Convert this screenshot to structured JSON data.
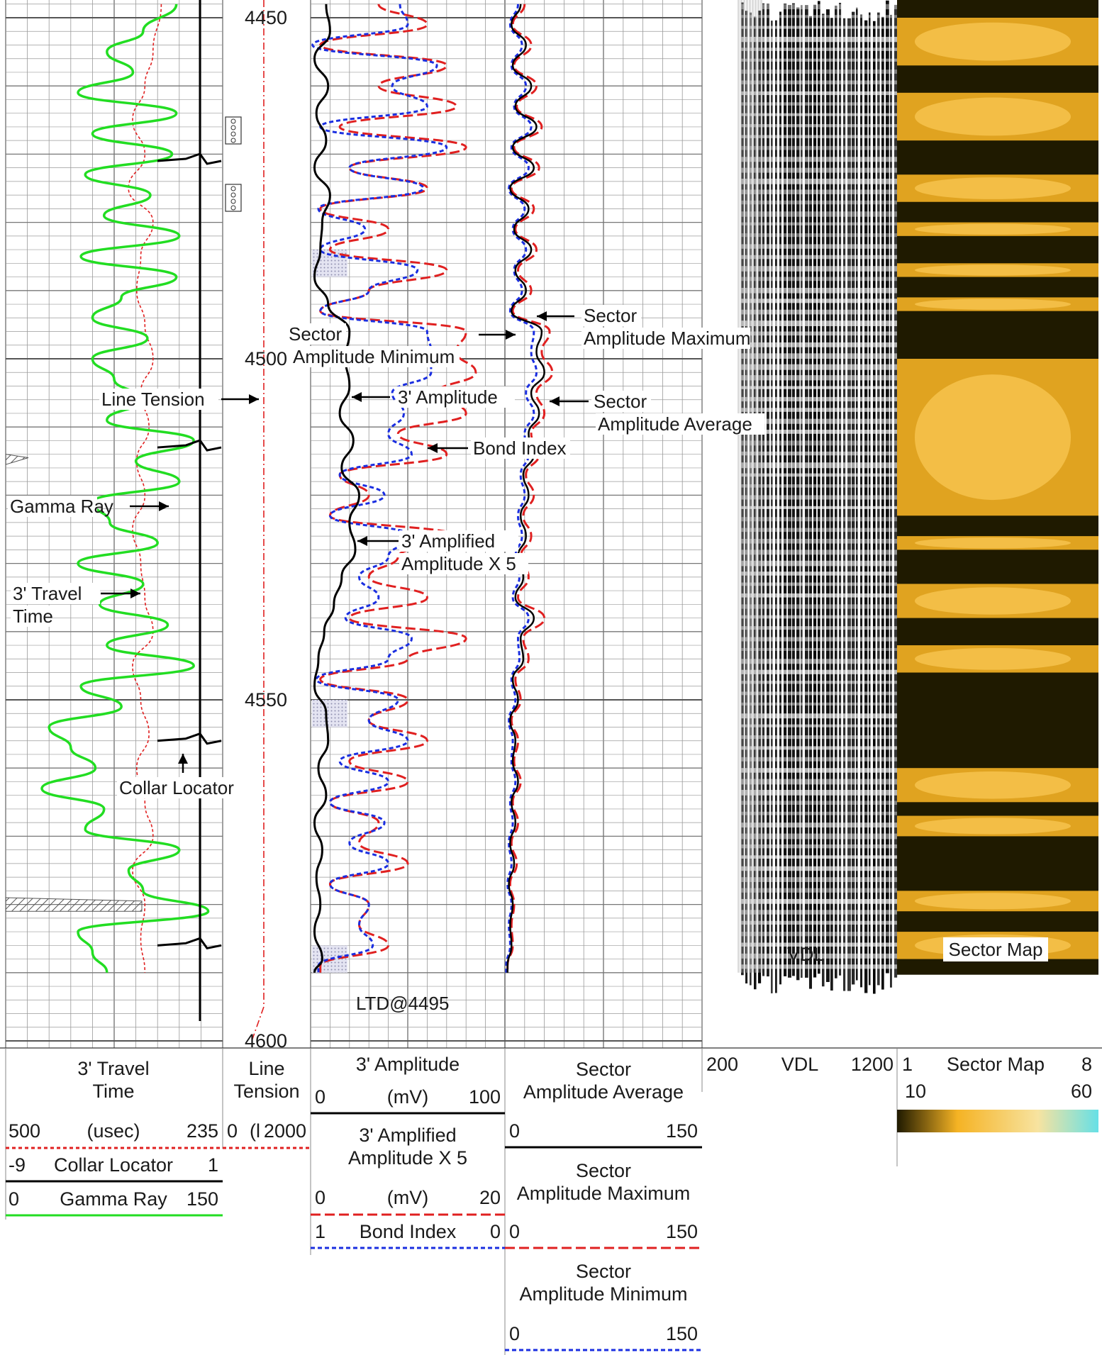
{
  "chart_data": {
    "type": "line",
    "title": "",
    "depth_axis": {
      "ticks": [
        "4450",
        "4500",
        "4550",
        "4600"
      ],
      "min": 4448,
      "max": 4600
    },
    "annotations": {
      "line_tension": "Line Tension",
      "gamma_ray": "Gamma Ray",
      "travel_time_1": "3' Travel",
      "travel_time_2": "Time",
      "collar_locator": "Collar Locator",
      "sector_min_1": "Sector",
      "sector_min_2": "Amplitude Minimum",
      "amplitude_3ft": "3' Amplitude",
      "bond_index": "Bond Index",
      "amplified_1": "3' Amplified",
      "amplified_2": "Amplitude X 5",
      "sector_max_1": "Sector",
      "sector_max_2": "Amplitude Maximum",
      "sector_avg_1": "Sector",
      "sector_avg_2": "Amplitude Average",
      "ltd": "LTD@4495",
      "vdl": "VDL",
      "sector_map": "Sector Map"
    },
    "header": {
      "travel_time": {
        "name_1": "3' Travel",
        "name_2": "Time",
        "min": "500",
        "unit": "(usec)",
        "max": "235",
        "color": "#e02020"
      },
      "collar_locator": {
        "name": "Collar Locator",
        "min": "-9",
        "max": "1",
        "color": "#000000"
      },
      "gamma_ray": {
        "name": "Gamma Ray",
        "min": "0",
        "max": "150",
        "color": "#22dd22"
      },
      "line_tension": {
        "name_1": "Line",
        "name_2": "Tension",
        "min": "0",
        "mid": "(l",
        "max": "2000",
        "color": "#e02020"
      },
      "amplitude_3ft": {
        "name": "3' Amplitude",
        "min": "0",
        "unit": "(mV)",
        "max": "100",
        "color": "#000000"
      },
      "amplified": {
        "name_1": "3' Amplified",
        "name_2": "Amplitude X 5",
        "min": "0",
        "unit": "(mV)",
        "max": "20",
        "color": "#e02020"
      },
      "bond_index": {
        "name": "Bond Index",
        "min": "1",
        "max": "0",
        "color": "#1a2ee0"
      },
      "sector_avg": {
        "name_1": "Sector",
        "name_2": "Amplitude Average",
        "min": "0",
        "max": "150",
        "color": "#000000"
      },
      "sector_max": {
        "name_1": "Sector",
        "name_2": "Amplitude Maximum",
        "min": "0",
        "max": "150",
        "color": "#e02020"
      },
      "sector_min": {
        "name_1": "Sector",
        "name_2": "Amplitude Minimum",
        "min": "0",
        "max": "150",
        "color": "#1a2ee0"
      },
      "vdl": {
        "name": "VDL",
        "min": "200",
        "max": "1200"
      },
      "sector_map": {
        "name": "Sector Map",
        "min": "1",
        "max": "8",
        "min2": "10",
        "max2": "60"
      }
    },
    "colors": {
      "gamma": "#22dd22",
      "red": "#e02020",
      "blue": "#1a2ee0",
      "black": "#000000",
      "grid": "#9a9a9a",
      "map_dark": "#1f1a00",
      "map_light": "#f5b324",
      "map_high": "#66e0e6"
    },
    "series": [
      {
        "name": "Gamma Ray",
        "unit_range": [
          0,
          150
        ],
        "depths": [
          4448,
          4452,
          4455,
          4458,
          4461,
          4464,
          4467,
          4470,
          4473,
          4476,
          4479,
          4482,
          4485,
          4488,
          4491,
          4494,
          4497,
          4500,
          4503,
          4506,
          4509,
          4512,
          4515,
          4518,
          4521,
          4524,
          4527,
          4530,
          4533,
          4536,
          4539,
          4542,
          4545,
          4548,
          4551,
          4554,
          4557,
          4560,
          4563,
          4566,
          4569,
          4572,
          4575,
          4578,
          4581,
          4584,
          4587,
          4590
        ],
        "values": [
          118,
          95,
          70,
          88,
          50,
          118,
          60,
          115,
          55,
          100,
          68,
          120,
          52,
          118,
          80,
          60,
          98,
          60,
          75,
          95,
          70,
          130,
          90,
          120,
          60,
          72,
          105,
          50,
          95,
          65,
          112,
          70,
          130,
          52,
          80,
          30,
          45,
          62,
          25,
          68,
          55,
          120,
          85,
          95,
          140,
          50,
          60,
          70
        ]
      },
      {
        "name": "3' Travel Time",
        "unit_range": [
          500,
          235
        ],
        "depths": [
          4448,
          4455,
          4460,
          4465,
          4470,
          4475,
          4480,
          4485,
          4490,
          4495,
          4500,
          4505,
          4510,
          4515,
          4520,
          4525,
          4530,
          4535,
          4540,
          4545,
          4550,
          4555,
          4560,
          4565,
          4570,
          4575,
          4580,
          4585,
          4590
        ],
        "values": [
          310,
          320,
          330,
          345,
          330,
          350,
          320,
          335,
          340,
          330,
          320,
          335,
          325,
          340,
          330,
          345,
          335,
          330,
          320,
          345,
          335,
          325,
          340,
          330,
          320,
          345,
          330,
          335,
          330
        ]
      },
      {
        "name": "3' Amplitude",
        "unit_range": [
          0,
          100
        ],
        "depths": [
          4448,
          4452,
          4456,
          4460,
          4464,
          4468,
          4472,
          4476,
          4480,
          4484,
          4488,
          4492,
          4496,
          4500,
          4504,
          4508,
          4512,
          4516,
          4520,
          4524,
          4528,
          4532,
          4536,
          4540,
          4544,
          4548,
          4552,
          4556,
          4560,
          4564,
          4568,
          4572,
          4576,
          4580,
          4584,
          4588,
          4590
        ],
        "values": [
          8,
          10,
          2,
          9,
          3,
          8,
          2,
          10,
          6,
          5,
          2,
          9,
          20,
          18,
          20,
          15,
          22,
          16,
          25,
          20,
          23,
          16,
          12,
          7,
          4,
          2,
          8,
          9,
          4,
          8,
          2,
          6,
          3,
          5,
          2,
          6,
          2
        ]
      },
      {
        "name": "3' Amplified Amplitude X 5",
        "unit_range": [
          0,
          20
        ],
        "depths": [
          4448,
          4451,
          4454,
          4457,
          4460,
          4463,
          4466,
          4469,
          4472,
          4475,
          4478,
          4481,
          4484,
          4487,
          4490,
          4493,
          4496,
          4499,
          4502,
          4505,
          4508,
          4511,
          4514,
          4517,
          4520,
          4523,
          4526,
          4529,
          4532,
          4535,
          4538,
          4541,
          4544,
          4547,
          4550,
          4553,
          4556,
          4559,
          4562,
          4565,
          4568,
          4571,
          4574,
          4577,
          4580,
          4583,
          4586,
          4589,
          4590
        ],
        "values": [
          7,
          12,
          1,
          14,
          7,
          15,
          3,
          16,
          4,
          12,
          1,
          8,
          2,
          14,
          6,
          1,
          16,
          15,
          17,
          13,
          16,
          9,
          14,
          3,
          6,
          2,
          15,
          9,
          6,
          12,
          4,
          16,
          10,
          1,
          10,
          6,
          12,
          4,
          10,
          2,
          7,
          5,
          10,
          2,
          6,
          5,
          8,
          1,
          1
        ]
      },
      {
        "name": "Bond Index",
        "unit_range": [
          1,
          0
        ],
        "depths": [
          4448,
          4451,
          4454,
          4457,
          4460,
          4463,
          4466,
          4469,
          4472,
          4475,
          4478,
          4481,
          4484,
          4487,
          4490,
          4493,
          4496,
          4499,
          4502,
          4505,
          4508,
          4511,
          4514,
          4517,
          4520,
          4523,
          4526,
          4529,
          4532,
          4535,
          4538,
          4541,
          4544,
          4547,
          4550,
          4553,
          4556,
          4559,
          4562,
          4565,
          4568,
          4571,
          4574,
          4577,
          4580,
          4583,
          4586,
          4589,
          4590
        ],
        "values": [
          0.54,
          0.5,
          0.99,
          0.35,
          0.58,
          0.4,
          0.95,
          0.3,
          0.8,
          0.42,
          0.96,
          0.72,
          0.95,
          0.45,
          0.7,
          0.95,
          0.4,
          0.38,
          0.38,
          0.58,
          0.52,
          0.6,
          0.48,
          0.85,
          0.62,
          0.9,
          0.48,
          0.6,
          0.75,
          0.65,
          0.82,
          0.48,
          0.6,
          0.97,
          0.55,
          0.7,
          0.5,
          0.85,
          0.6,
          0.9,
          0.62,
          0.8,
          0.6,
          0.9,
          0.7,
          0.75,
          0.68,
          0.96,
          0.96
        ]
      },
      {
        "name": "Sector Amplitude Average",
        "unit_range": [
          0,
          150
        ],
        "depths": [
          4448,
          4451,
          4454,
          4457,
          4460,
          4463,
          4466,
          4469,
          4472,
          4475,
          4478,
          4481,
          4484,
          4487,
          4490,
          4493,
          4496,
          4499,
          4502,
          4505,
          4508,
          4511,
          4514,
          4517,
          4520,
          4523,
          4526,
          4529,
          4532,
          4535,
          4538,
          4541,
          4544,
          4547,
          4550,
          4553,
          4556,
          4559,
          4562,
          4565,
          4568,
          4571,
          4574,
          4577,
          4580,
          4583,
          4586,
          4589,
          4590
        ],
        "values": [
          12,
          5,
          16,
          6,
          20,
          8,
          24,
          6,
          22,
          4,
          18,
          7,
          20,
          8,
          16,
          5,
          28,
          24,
          30,
          20,
          26,
          18,
          22,
          14,
          18,
          12,
          16,
          10,
          14,
          8,
          22,
          12,
          14,
          6,
          10,
          4,
          8,
          6,
          10,
          5,
          8,
          4,
          7,
          3,
          6,
          4,
          5,
          2,
          2
        ]
      },
      {
        "name": "Sector Amplitude Maximum",
        "unit_range": [
          0,
          150
        ],
        "depths": [
          4448,
          4451,
          4454,
          4457,
          4460,
          4463,
          4466,
          4469,
          4472,
          4475,
          4478,
          4481,
          4484,
          4487,
          4490,
          4493,
          4496,
          4499,
          4502,
          4505,
          4508,
          4511,
          4514,
          4517,
          4520,
          4523,
          4526,
          4529,
          4532,
          4535,
          4538,
          4541,
          4544,
          4547,
          4550,
          4553,
          4556,
          4559,
          4562,
          4565,
          4568,
          4571,
          4574,
          4577,
          4580,
          4583,
          4586,
          4589,
          4590
        ],
        "values": [
          15,
          6,
          20,
          7,
          24,
          9,
          28,
          7,
          26,
          5,
          22,
          8,
          24,
          10,
          20,
          6,
          34,
          28,
          36,
          24,
          30,
          20,
          26,
          16,
          22,
          14,
          20,
          12,
          18,
          10,
          30,
          14,
          18,
          8,
          12,
          5,
          10,
          7,
          12,
          6,
          10,
          5,
          9,
          4,
          7,
          5,
          6,
          2,
          2
        ]
      },
      {
        "name": "Sector Amplitude Minimum",
        "unit_range": [
          0,
          150
        ],
        "depths": [
          4448,
          4451,
          4454,
          4457,
          4460,
          4463,
          4466,
          4469,
          4472,
          4475,
          4478,
          4481,
          4484,
          4487,
          4490,
          4493,
          4496,
          4499,
          4502,
          4505,
          4508,
          4511,
          4514,
          4517,
          4520,
          4523,
          4526,
          4529,
          4532,
          4535,
          4538,
          4541,
          4544,
          4547,
          4550,
          4553,
          4556,
          4559,
          4562,
          4565,
          4568,
          4571,
          4574,
          4577,
          4580,
          4583,
          4586,
          4589,
          4590
        ],
        "values": [
          10,
          4,
          13,
          5,
          16,
          7,
          20,
          5,
          18,
          3,
          15,
          6,
          16,
          7,
          13,
          4,
          22,
          20,
          24,
          16,
          22,
          15,
          18,
          12,
          15,
          10,
          13,
          8,
          11,
          6,
          18,
          10,
          11,
          5,
          8,
          3,
          6,
          5,
          8,
          4,
          6,
          3,
          5,
          2,
          5,
          3,
          4,
          1,
          1
        ]
      },
      {
        "name": "Collar Locator",
        "unit_range": [
          -9,
          1
        ],
        "collar_depths": [
          4471,
          4513,
          4556,
          4586
        ]
      },
      {
        "name": "Sector Map",
        "unit_range": [
          10,
          60
        ],
        "bright_bands": [
          [
            4450,
            4457
          ],
          [
            4461,
            4468
          ],
          [
            4473,
            4477
          ],
          [
            4480,
            4482
          ],
          [
            4486,
            4488
          ],
          [
            4491,
            4493
          ],
          [
            4500,
            4523
          ],
          [
            4526,
            4528
          ],
          [
            4533,
            4538
          ],
          [
            4542,
            4546
          ],
          [
            4560,
            4565
          ],
          [
            4567,
            4570
          ],
          [
            4578,
            4581
          ],
          [
            4584,
            4588
          ]
        ]
      }
    ]
  }
}
